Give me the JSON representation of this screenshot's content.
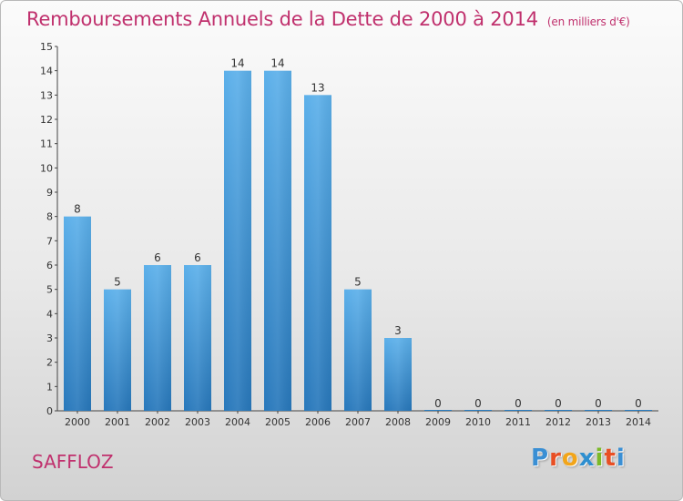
{
  "header": {
    "title": "Remboursements Annuels de la Dette de 2000 à 2014",
    "unit": "(en milliers d'€)"
  },
  "commune": "SAFFLOZ",
  "logo": {
    "letters": [
      "P",
      "r",
      "o",
      "x",
      "i",
      "t",
      "i"
    ]
  },
  "chart_data": {
    "type": "bar",
    "title": "Remboursements Annuels de la Dette de 2000 à 2014",
    "subtitle": "(en milliers d'€)",
    "xlabel": "",
    "ylabel": "",
    "categories": [
      "2000",
      "2001",
      "2002",
      "2003",
      "2004",
      "2005",
      "2006",
      "2007",
      "2008",
      "2009",
      "2010",
      "2011",
      "2012",
      "2013",
      "2014"
    ],
    "values": [
      8,
      5,
      6,
      6,
      14,
      14,
      13,
      5,
      3,
      0,
      0,
      0,
      0,
      0,
      0
    ],
    "ylim": [
      0,
      15
    ],
    "yticks": [
      0,
      1,
      2,
      3,
      4,
      5,
      6,
      7,
      8,
      9,
      10,
      11,
      12,
      13,
      14,
      15
    ],
    "grid": false,
    "legend": "none",
    "colors": {
      "bar_top": "#5aaee8",
      "bar_bottom": "#2a7cbf",
      "title": "#c0306d"
    }
  }
}
